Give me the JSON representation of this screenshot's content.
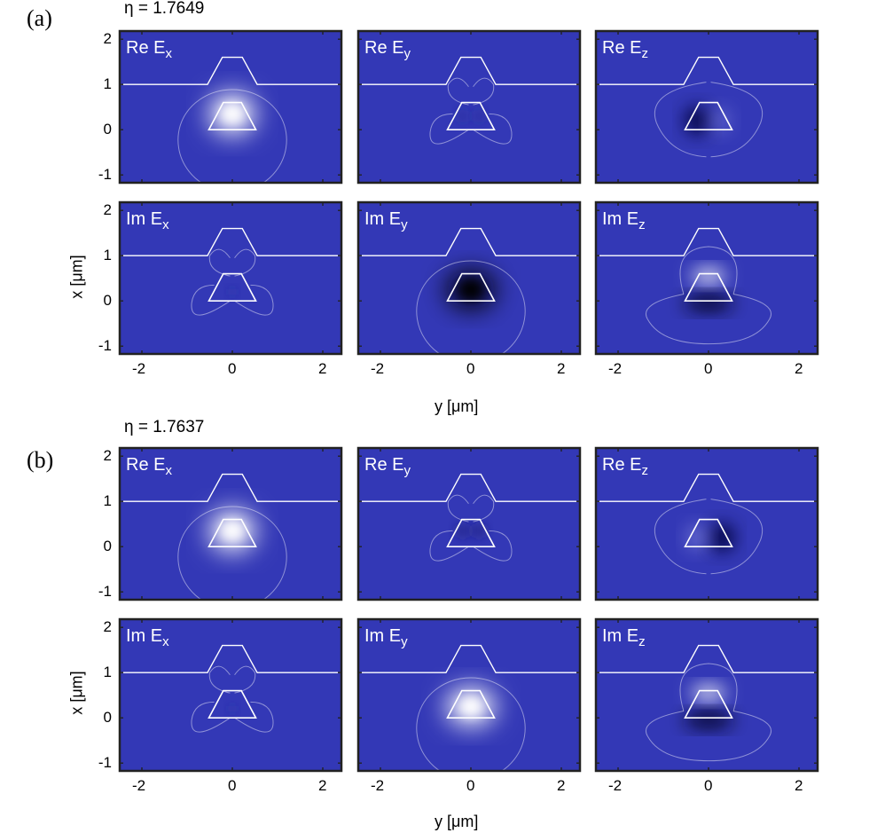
{
  "figure": {
    "groups": [
      {
        "letter": "(a)",
        "eta": "η = 1.7649",
        "panels": [
          {
            "label": "Re E",
            "sub": "x"
          },
          {
            "label": "Re E",
            "sub": "y"
          },
          {
            "label": "Re E",
            "sub": "z"
          },
          {
            "label": "Im E",
            "sub": "x"
          },
          {
            "label": "Im E",
            "sub": "y"
          },
          {
            "label": "Im E",
            "sub": "z"
          }
        ]
      },
      {
        "letter": "(b)",
        "eta": "η = 1.7637",
        "panels": [
          {
            "label": "Re E",
            "sub": "x"
          },
          {
            "label": "Re E",
            "sub": "y"
          },
          {
            "label": "Re E",
            "sub": "z"
          },
          {
            "label": "Im E",
            "sub": "x"
          },
          {
            "label": "Im E",
            "sub": "y"
          },
          {
            "label": "Im E",
            "sub": "z"
          }
        ]
      }
    ],
    "x_axis_label": "y [μm]",
    "y_axis_label": "x [μm]",
    "x_ticks": [
      "-2",
      "0",
      "2"
    ],
    "y_ticks": [
      "2",
      "1",
      "0",
      "-1"
    ],
    "colors": {
      "background": "#3338b6",
      "frame": "#222222",
      "outline": "#ffffff"
    }
  }
}
